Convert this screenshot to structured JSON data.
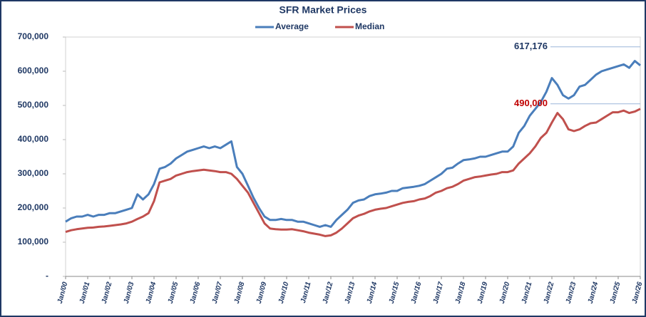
{
  "chart_data": {
    "type": "line",
    "title": "SFR Market Prices",
    "categories": [
      "Jan/00",
      null,
      null,
      null,
      "Jan/01",
      null,
      null,
      null,
      "Jan/02",
      null,
      null,
      null,
      "Jan/03",
      null,
      null,
      null,
      "Jan/04",
      null,
      null,
      null,
      "Jan/05",
      null,
      null,
      null,
      "Jan/06",
      null,
      null,
      null,
      "Jan/07",
      null,
      null,
      null,
      "Jan/08",
      null,
      null,
      null,
      "Jan/09",
      null,
      null,
      null,
      "Jan/10",
      null,
      null,
      null,
      "Jan/11",
      null,
      null,
      null,
      "Jan/12",
      null,
      null,
      null,
      "Jan/13",
      null,
      null,
      null,
      "Jan/14",
      null,
      null,
      null,
      "Jan/15",
      null,
      null,
      null,
      "Jan/16",
      null,
      null,
      null,
      "Jan/17",
      null,
      null,
      null,
      "Jan/18",
      null,
      null,
      null,
      "Jan/19",
      null,
      null,
      null,
      "Jan/20",
      null,
      null,
      null,
      "Jan/21",
      null,
      null,
      null,
      "Jan/22",
      null,
      null,
      null,
      "Jan/23",
      null,
      null,
      null,
      "Jan/24",
      null,
      null,
      null,
      "Jan/25",
      null,
      null,
      null,
      "Jan/26"
    ],
    "series": [
      {
        "name": "Average",
        "color": "#4a7ebb",
        "values": [
          160000,
          170000,
          175000,
          175000,
          180000,
          175000,
          180000,
          180000,
          185000,
          185000,
          190000,
          195000,
          200000,
          240000,
          225000,
          240000,
          270000,
          315000,
          320000,
          330000,
          345000,
          355000,
          365000,
          370000,
          375000,
          380000,
          375000,
          380000,
          375000,
          385000,
          395000,
          320000,
          300000,
          265000,
          230000,
          200000,
          175000,
          165000,
          165000,
          168000,
          165000,
          165000,
          160000,
          160000,
          155000,
          150000,
          145000,
          150000,
          145000,
          165000,
          180000,
          195000,
          215000,
          222000,
          225000,
          235000,
          240000,
          242000,
          245000,
          250000,
          250000,
          258000,
          260000,
          262000,
          265000,
          270000,
          280000,
          290000,
          300000,
          315000,
          318000,
          330000,
          340000,
          342000,
          345000,
          350000,
          350000,
          355000,
          360000,
          365000,
          365000,
          380000,
          420000,
          440000,
          470000,
          490000,
          510000,
          540000,
          580000,
          560000,
          530000,
          520000,
          530000,
          555000,
          560000,
          575000,
          590000,
          600000,
          605000,
          610000,
          615000,
          620000,
          610000,
          630000,
          617176
        ]
      },
      {
        "name": "Median",
        "color": "#c0504d",
        "values": [
          130000,
          135000,
          138000,
          140000,
          142000,
          143000,
          145000,
          146000,
          148000,
          150000,
          152000,
          155000,
          160000,
          168000,
          175000,
          185000,
          220000,
          275000,
          280000,
          285000,
          295000,
          300000,
          305000,
          308000,
          310000,
          312000,
          310000,
          308000,
          305000,
          305000,
          300000,
          285000,
          265000,
          245000,
          215000,
          185000,
          155000,
          140000,
          138000,
          137000,
          137000,
          138000,
          135000,
          132000,
          128000,
          125000,
          122000,
          118000,
          120000,
          128000,
          140000,
          155000,
          170000,
          178000,
          183000,
          190000,
          195000,
          198000,
          200000,
          205000,
          210000,
          215000,
          218000,
          220000,
          225000,
          228000,
          235000,
          245000,
          250000,
          258000,
          262000,
          270000,
          280000,
          285000,
          290000,
          292000,
          295000,
          298000,
          300000,
          305000,
          305000,
          310000,
          330000,
          345000,
          360000,
          380000,
          405000,
          420000,
          450000,
          478000,
          460000,
          430000,
          425000,
          430000,
          440000,
          448000,
          450000,
          460000,
          470000,
          480000,
          480000,
          485000,
          478000,
          482000,
          490000
        ]
      }
    ],
    "annotations": [
      "617,176",
      "490,000"
    ],
    "annotation_colors": [
      "#1f3864",
      "#c00000"
    ],
    "ylim": [
      0,
      700000
    ],
    "yticks": [
      {
        "value": 0,
        "label": "-"
      },
      {
        "value": 100000,
        "label": "100,000"
      },
      {
        "value": 200000,
        "label": "200,000"
      },
      {
        "value": 300000,
        "label": "300,000"
      },
      {
        "value": 400000,
        "label": "400,000"
      },
      {
        "value": 500000,
        "label": "500,000"
      },
      {
        "value": 600000,
        "label": "600,000"
      },
      {
        "value": 700000,
        "label": "700,000"
      }
    ],
    "grid": false,
    "legend": "top"
  }
}
